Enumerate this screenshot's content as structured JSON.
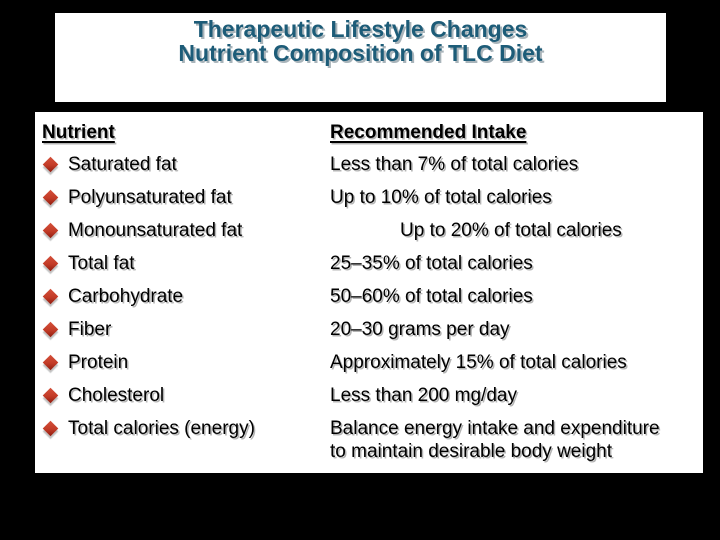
{
  "slide": {
    "title_line1": "Therapeutic Lifestyle Changes",
    "title_line2": "Nutrient Composition of TLC Diet"
  },
  "table": {
    "headers": {
      "nutrient": "Nutrient",
      "intake": "Recommended Intake"
    },
    "rows": [
      {
        "nutrient": "Saturated fat",
        "intake": "Less than 7% of total calories",
        "indent": false
      },
      {
        "nutrient": "Polyunsaturated fat",
        "intake": "Up to 10% of total calories",
        "indent": false
      },
      {
        "nutrient": "Monounsaturated fat",
        "intake": "Up to 20% of total calories",
        "indent": true
      },
      {
        "nutrient": "Total fat",
        "intake": "25–35% of total calories",
        "indent": false
      },
      {
        "nutrient": "Carbohydrate",
        "intake": "50–60% of total calories",
        "indent": false
      },
      {
        "nutrient": "Fiber",
        "intake": "20–30 grams per day",
        "indent": false
      },
      {
        "nutrient": "Protein",
        "intake": "Approximately 15% of total calories",
        "indent": false
      },
      {
        "nutrient": "Cholesterol",
        "intake": "Less than 200 mg/day",
        "indent": false
      },
      {
        "nutrient": "Total calories (energy)",
        "intake": "Balance energy intake and expenditure\nto maintain desirable body weight",
        "indent": false
      }
    ]
  },
  "colors": {
    "background": "#000000",
    "panel": "#ffffff",
    "title_text": "#1d5c78",
    "body_text": "#000000",
    "bullet_red": "#c23b27"
  }
}
